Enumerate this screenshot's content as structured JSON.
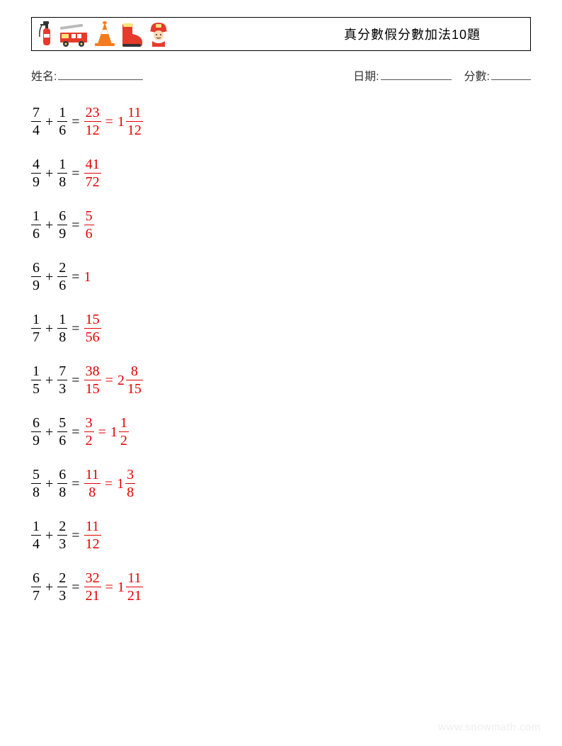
{
  "header": {
    "title": "真分數假分數加法10題"
  },
  "info": {
    "name_label": "姓名:",
    "date_label": "日期:",
    "score_label": "分數:"
  },
  "colors": {
    "question": "#000000",
    "answer": "#e40000",
    "border": "#000000",
    "watermark": "#eeeeee"
  },
  "problems": [
    {
      "a": {
        "n": "7",
        "d": "4"
      },
      "b": {
        "n": "1",
        "d": "6"
      },
      "ans": [
        {
          "type": "frac",
          "n": "23",
          "d": "12"
        },
        {
          "type": "mixed",
          "w": "1",
          "n": "11",
          "d": "12"
        }
      ]
    },
    {
      "a": {
        "n": "4",
        "d": "9"
      },
      "b": {
        "n": "1",
        "d": "8"
      },
      "ans": [
        {
          "type": "frac",
          "n": "41",
          "d": "72"
        }
      ]
    },
    {
      "a": {
        "n": "1",
        "d": "6"
      },
      "b": {
        "n": "6",
        "d": "9"
      },
      "ans": [
        {
          "type": "frac",
          "n": "5",
          "d": "6"
        }
      ]
    },
    {
      "a": {
        "n": "6",
        "d": "9"
      },
      "b": {
        "n": "2",
        "d": "6"
      },
      "ans": [
        {
          "type": "int",
          "v": "1"
        }
      ]
    },
    {
      "a": {
        "n": "1",
        "d": "7"
      },
      "b": {
        "n": "1",
        "d": "8"
      },
      "ans": [
        {
          "type": "frac",
          "n": "15",
          "d": "56"
        }
      ]
    },
    {
      "a": {
        "n": "1",
        "d": "5"
      },
      "b": {
        "n": "7",
        "d": "3"
      },
      "ans": [
        {
          "type": "frac",
          "n": "38",
          "d": "15"
        },
        {
          "type": "mixed",
          "w": "2",
          "n": "8",
          "d": "15"
        }
      ]
    },
    {
      "a": {
        "n": "6",
        "d": "9"
      },
      "b": {
        "n": "5",
        "d": "6"
      },
      "ans": [
        {
          "type": "frac",
          "n": "3",
          "d": "2"
        },
        {
          "type": "mixed",
          "w": "1",
          "n": "1",
          "d": "2"
        }
      ]
    },
    {
      "a": {
        "n": "5",
        "d": "8"
      },
      "b": {
        "n": "6",
        "d": "8"
      },
      "ans": [
        {
          "type": "frac",
          "n": "11",
          "d": "8"
        },
        {
          "type": "mixed",
          "w": "1",
          "n": "3",
          "d": "8"
        }
      ]
    },
    {
      "a": {
        "n": "1",
        "d": "4"
      },
      "b": {
        "n": "2",
        "d": "3"
      },
      "ans": [
        {
          "type": "frac",
          "n": "11",
          "d": "12"
        }
      ]
    },
    {
      "a": {
        "n": "6",
        "d": "7"
      },
      "b": {
        "n": "2",
        "d": "3"
      },
      "ans": [
        {
          "type": "frac",
          "n": "32",
          "d": "21"
        },
        {
          "type": "mixed",
          "w": "1",
          "n": "11",
          "d": "21"
        }
      ]
    }
  ],
  "symbols": {
    "plus": "+",
    "equals": "="
  },
  "watermark": "www.snowmath.com"
}
